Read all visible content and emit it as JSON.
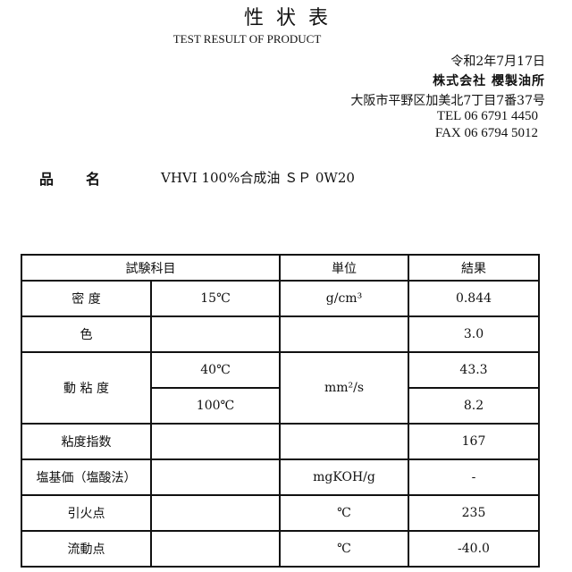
{
  "header": {
    "title": "性状表",
    "subtitle": "TEST RESULT OF PRODUCT",
    "date": "令和2年7月17日",
    "company": "株式会社 櫻製油所",
    "address": "大阪市平野区加美北7丁目7番37号",
    "tel": "TEL  06 6791 4450",
    "fax": "FAX  06 6794 5012"
  },
  "product": {
    "label": "品名",
    "name": "VHVI 100%合成油 ＳＰ  0W20"
  },
  "table": {
    "headers": [
      "試験科目",
      "単位",
      "結果"
    ],
    "rows": [
      {
        "item": "密 度",
        "condition": "15℃",
        "unit": "g/cm³",
        "result": "0.844"
      },
      {
        "item": "色",
        "condition": "",
        "unit": "",
        "result": "3.0"
      },
      {
        "item": "動 粘 度",
        "condition": "40℃",
        "unit": "mm²/s",
        "result": "43.3"
      },
      {
        "condition": "100℃",
        "result": "8.2"
      },
      {
        "item": "粘度指数",
        "condition": "",
        "unit": "",
        "result": "167"
      },
      {
        "item": "塩基価（塩酸法）",
        "condition": "",
        "unit": "mgKOH/g",
        "result": "-"
      },
      {
        "item": "引火点",
        "condition": "",
        "unit": "℃",
        "result": "235"
      },
      {
        "item": "流動点",
        "condition": "",
        "unit": "℃",
        "result": "-40.0"
      }
    ]
  }
}
